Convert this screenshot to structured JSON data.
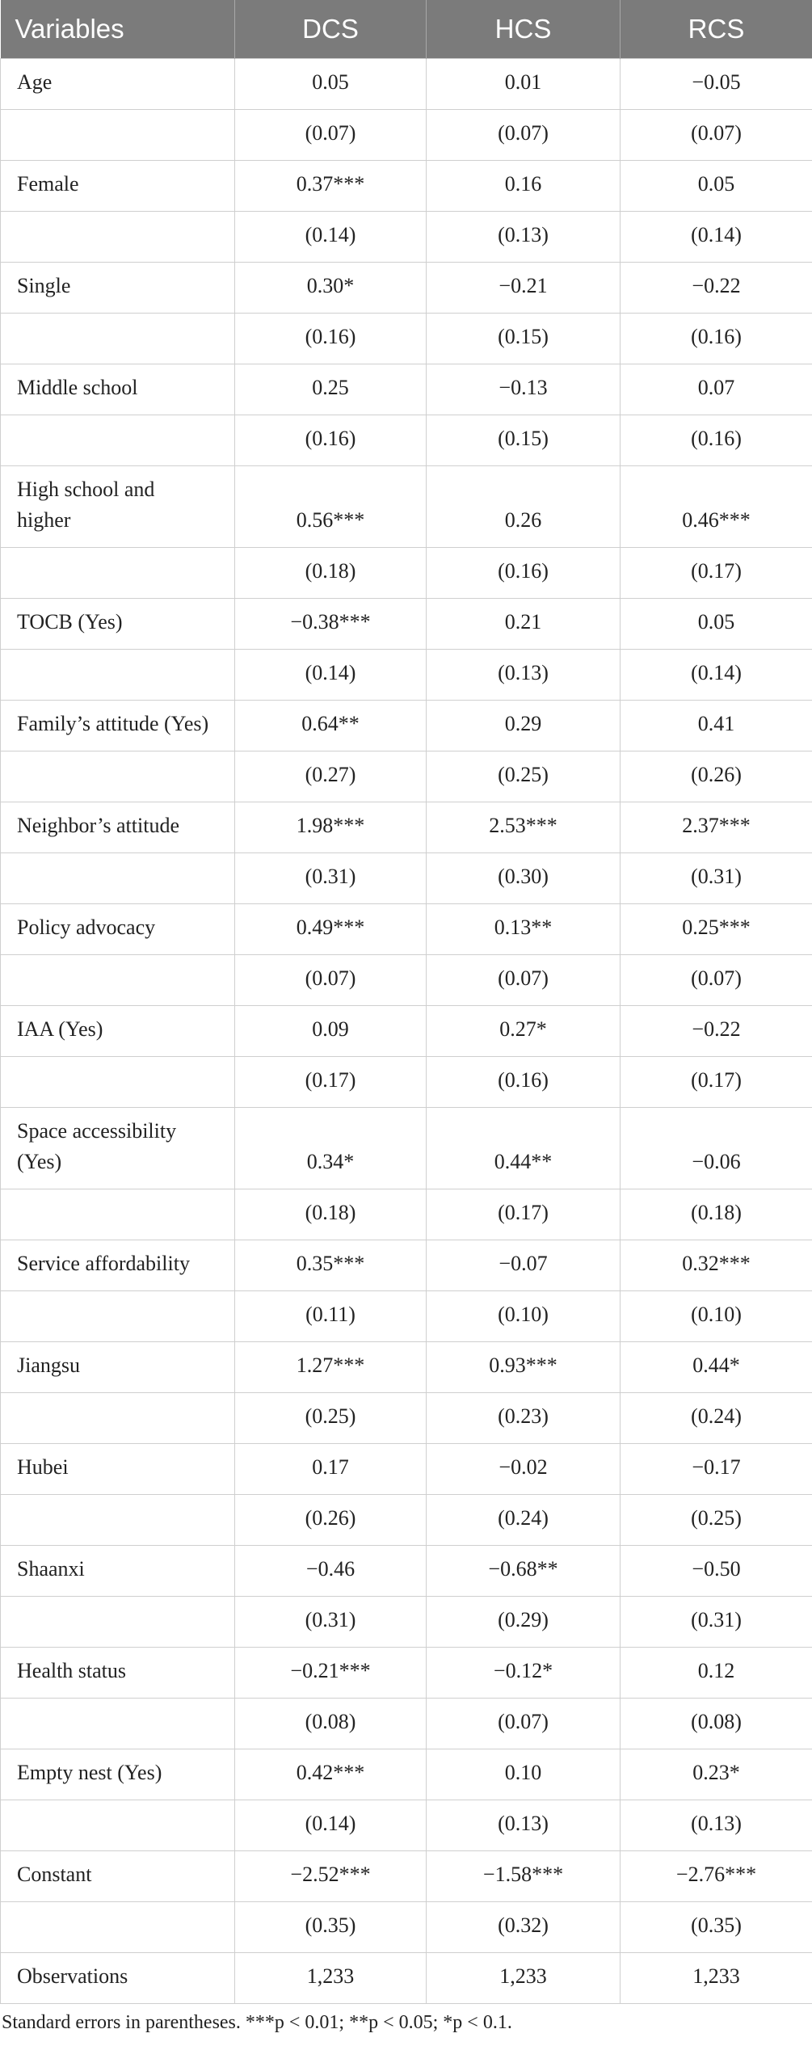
{
  "table": {
    "columns": [
      "Variables",
      "DCS",
      "HCS",
      "RCS"
    ],
    "rows": [
      {
        "variable": "Age",
        "coef": [
          "0.05",
          "0.01",
          "−0.05"
        ],
        "se": [
          "(0.07)",
          "(0.07)",
          "(0.07)"
        ]
      },
      {
        "variable": "Female",
        "coef": [
          "0.37***",
          "0.16",
          "0.05"
        ],
        "se": [
          "(0.14)",
          "(0.13)",
          "(0.14)"
        ]
      },
      {
        "variable": "Single",
        "coef": [
          "0.30*",
          "−0.21",
          "−0.22"
        ],
        "se": [
          "(0.16)",
          "(0.15)",
          "(0.16)"
        ]
      },
      {
        "variable": "Middle school",
        "coef": [
          "0.25",
          "−0.13",
          "0.07"
        ],
        "se": [
          "(0.16)",
          "(0.15)",
          "(0.16)"
        ]
      },
      {
        "variable": "High school and higher",
        "coef": [
          "0.56***",
          "0.26",
          "0.46***"
        ],
        "se": [
          "(0.18)",
          "(0.16)",
          "(0.17)"
        ]
      },
      {
        "variable": "TOCB (Yes)",
        "coef": [
          "−0.38***",
          "0.21",
          "0.05"
        ],
        "se": [
          "(0.14)",
          "(0.13)",
          "(0.14)"
        ]
      },
      {
        "variable": "Family’s attitude (Yes)",
        "coef": [
          "0.64**",
          "0.29",
          "0.41"
        ],
        "se": [
          "(0.27)",
          "(0.25)",
          "(0.26)"
        ]
      },
      {
        "variable": "Neighbor’s attitude",
        "coef": [
          "1.98***",
          "2.53***",
          "2.37***"
        ],
        "se": [
          "(0.31)",
          "(0.30)",
          "(0.31)"
        ]
      },
      {
        "variable": "Policy advocacy",
        "coef": [
          "0.49***",
          "0.13**",
          "0.25***"
        ],
        "se": [
          "(0.07)",
          "(0.07)",
          "(0.07)"
        ]
      },
      {
        "variable": "IAA (Yes)",
        "coef": [
          "0.09",
          "0.27*",
          "−0.22"
        ],
        "se": [
          "(0.17)",
          "(0.16)",
          "(0.17)"
        ]
      },
      {
        "variable": "Space accessibility (Yes)",
        "coef": [
          "0.34*",
          "0.44**",
          "−0.06"
        ],
        "se": [
          "(0.18)",
          "(0.17)",
          "(0.18)"
        ]
      },
      {
        "variable": "Service affordability",
        "coef": [
          "0.35***",
          "−0.07",
          "0.32***"
        ],
        "se": [
          "(0.11)",
          "(0.10)",
          "(0.10)"
        ]
      },
      {
        "variable": "Jiangsu",
        "coef": [
          "1.27***",
          "0.93***",
          "0.44*"
        ],
        "se": [
          "(0.25)",
          "(0.23)",
          "(0.24)"
        ]
      },
      {
        "variable": "Hubei",
        "coef": [
          "0.17",
          "−0.02",
          "−0.17"
        ],
        "se": [
          "(0.26)",
          "(0.24)",
          "(0.25)"
        ]
      },
      {
        "variable": "Shaanxi",
        "coef": [
          "−0.46",
          "−0.68**",
          "−0.50"
        ],
        "se": [
          "(0.31)",
          "(0.29)",
          "(0.31)"
        ]
      },
      {
        "variable": "Health status",
        "coef": [
          "−0.21***",
          "−0.12*",
          "0.12"
        ],
        "se": [
          "(0.08)",
          "(0.07)",
          "(0.08)"
        ]
      },
      {
        "variable": "Empty nest (Yes)",
        "coef": [
          "0.42***",
          "0.10",
          "0.23*"
        ],
        "se": [
          "(0.14)",
          "(0.13)",
          "(0.13)"
        ]
      },
      {
        "variable": "Constant",
        "coef": [
          "−2.52***",
          "−1.58***",
          "−2.76***"
        ],
        "se": [
          "(0.35)",
          "(0.32)",
          "(0.35)"
        ]
      },
      {
        "variable": "Observations",
        "coef": [
          "1,233",
          "1,233",
          "1,233"
        ]
      }
    ]
  },
  "footnote": "Standard errors in parentheses. ***p < 0.01; **p < 0.05; *p < 0.1."
}
